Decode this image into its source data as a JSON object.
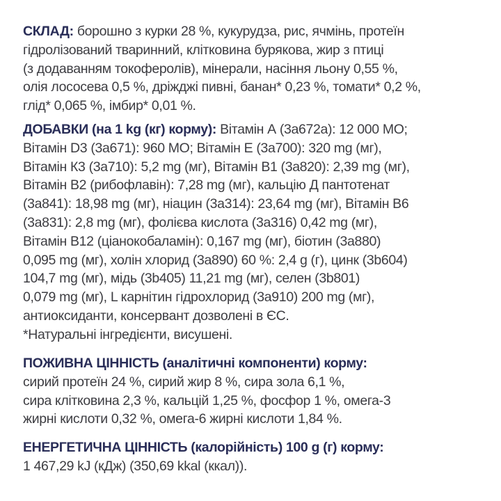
{
  "colors": {
    "heading": "#2a2e58",
    "text": "#3d3d42",
    "background": "#ffffff"
  },
  "composition": {
    "heading": "СКЛАД:",
    "lines": [
      "борошно з курки 28 %, кукурудза, рис, ячмінь, протеїн",
      "гідролізований тваринний, клітковина бурякова, жир з птиці",
      "(з додаванням токоферолів), мінерали, насіння льону 0,55 %,",
      "олія лососева 0,5 %, дріжджі пивні, банан* 0,23 %, томати* 0,2 %,",
      "глід* 0,065 %, імбир* 0,01 %."
    ]
  },
  "additives": {
    "heading": "ДОБАВКИ (на 1 kg (кг) корму):",
    "lines": [
      "Вітамін А (3а672а): 12 000 МО;",
      "Вітамін D3 (3а671): 960 МО; Вітамін Е (3а700): 320 mg (мг),",
      "Вітамін К3 (3а710): 5,2 mg (мг), Вітамін В1 (3а820): 2,39 mg (мг),",
      "Вітамін В2 (рибофлавін): 7,28 mg (мг), кальцію Д пантотенат",
      "(3а841): 18,98 mg (мг), ніацин (3а314): 23,64 mg (мг), Вітамін В6",
      "(3а831): 2,8 mg (мг), фолієва кислота (3а316) 0,42 mg (мг),",
      "Вітамін В12 (ціанокобаламін): 0,167 mg (мг), біотин (3а880)",
      "0,095 mg (мг), холін хлорид (3а890) 60 %: 2,4 g (г), цинк (3b604)",
      "104,7 mg (мг), мідь (3b405) 11,21 mg (мг), селен (3b801)",
      "0,079 mg (мг), L карнітин гідрохлорид (3а910) 200 mg (мг),",
      "антиоксиданти, консервант дозволені в ЄС.",
      "*Натуральні інгредієнти, висушені."
    ]
  },
  "nutrition": {
    "heading": "ПОЖИВНА ЦІННІСТЬ (аналітичні компоненти) корму:",
    "lines": [
      "сирий протеїн 24 %, сирий жир 8 %, сира зола 6,1 %,",
      "сира клітковина 2,3 %, кальцій 1,25 %, фосфор 1 %, омега-3",
      "жирні кислоти 0,32 %, омега-6 жирні кислоти 1,84 %."
    ]
  },
  "energy": {
    "heading": "ЕНЕРГЕТИЧНА ЦІННІСТЬ (калорійність) 100 g (г) корму:",
    "lines": [
      "1 467,29 kJ (кДж) (350,69 kkal (ккал))."
    ]
  }
}
